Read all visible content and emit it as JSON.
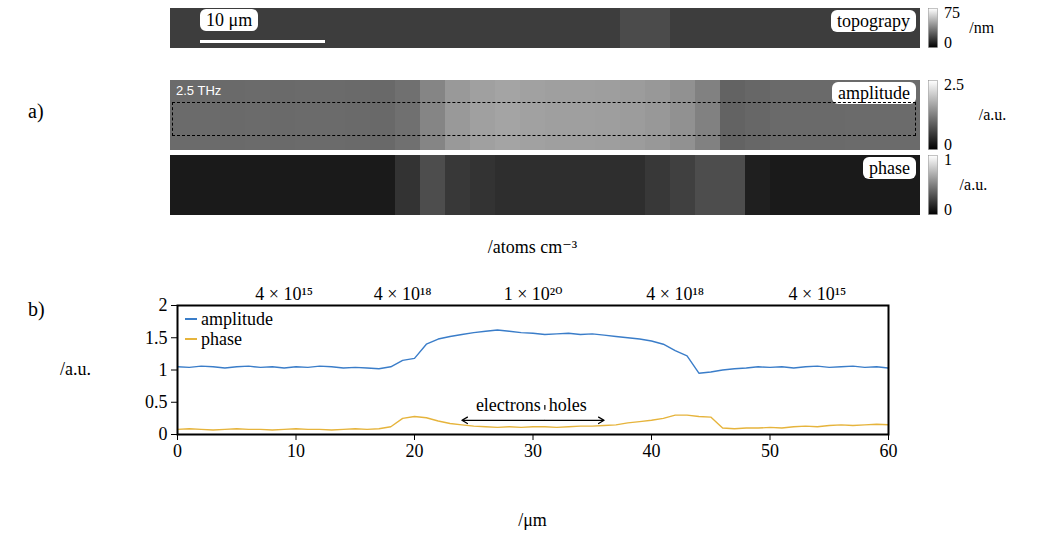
{
  "chart_data": [
    {
      "type": "heatmap",
      "panel_label": "a)",
      "title": "topograpy",
      "xlim": [
        0,
        60
      ],
      "bins": [
        0,
        2,
        4,
        6,
        8,
        10,
        12,
        14,
        16,
        18,
        20,
        22,
        24,
        26,
        28,
        30,
        32,
        34,
        36,
        38,
        40,
        42,
        44,
        46,
        48,
        50,
        52,
        54,
        56,
        58,
        60
      ],
      "values": [
        18,
        18,
        18,
        18,
        18,
        18,
        18,
        18,
        18,
        18,
        18,
        18,
        18,
        18,
        18,
        18,
        18,
        18,
        22,
        22,
        18,
        18,
        18,
        18,
        18,
        18,
        18,
        18,
        18,
        18
      ],
      "colorbar": {
        "range": [
          0,
          75
        ],
        "ticks": [
          0,
          75
        ],
        "label": "/nm"
      },
      "scale_bar": {
        "length": 10,
        "label": "10 μm"
      }
    },
    {
      "type": "heatmap",
      "title": "amplitude",
      "annotation": "2.5 THz",
      "xlim": [
        0,
        60
      ],
      "bins": [
        0,
        2,
        4,
        6,
        8,
        10,
        12,
        14,
        16,
        18,
        20,
        22,
        24,
        26,
        28,
        30,
        32,
        34,
        36,
        38,
        40,
        42,
        44,
        46,
        48,
        50,
        52,
        54,
        56,
        58,
        60
      ],
      "values": [
        1.05,
        1.05,
        1.04,
        1.05,
        1.04,
        1.05,
        1.05,
        1.04,
        1.03,
        1.1,
        1.3,
        1.5,
        1.57,
        1.61,
        1.58,
        1.56,
        1.56,
        1.55,
        1.53,
        1.49,
        1.42,
        1.26,
        0.97,
        1.01,
        1.04,
        1.04,
        1.04,
        1.05,
        1.05,
        1.05
      ],
      "colorbar": {
        "range": [
          0,
          2.5
        ],
        "ticks": [
          0,
          2.5
        ],
        "label": "/a.u."
      }
    },
    {
      "type": "heatmap",
      "title": "phase",
      "xlim": [
        0,
        60
      ],
      "bins": [
        0,
        2,
        4,
        6,
        8,
        10,
        12,
        14,
        16,
        18,
        20,
        22,
        24,
        26,
        28,
        30,
        32,
        34,
        36,
        38,
        40,
        42,
        44,
        46,
        48,
        50,
        52,
        54,
        56,
        58,
        60
      ],
      "values": [
        0.1,
        0.1,
        0.1,
        0.1,
        0.1,
        0.1,
        0.1,
        0.1,
        0.1,
        0.2,
        0.3,
        0.22,
        0.2,
        0.18,
        0.18,
        0.18,
        0.18,
        0.18,
        0.18,
        0.22,
        0.25,
        0.3,
        0.3,
        0.12,
        0.1,
        0.1,
        0.1,
        0.1,
        0.1,
        0.1
      ],
      "colorbar": {
        "range": [
          0,
          1
        ],
        "ticks": [
          0,
          1
        ],
        "label": "/a.u."
      }
    },
    {
      "type": "line",
      "panel_label": "b)",
      "x": [
        0,
        1,
        2,
        3,
        4,
        5,
        6,
        7,
        8,
        9,
        10,
        11,
        12,
        13,
        14,
        15,
        16,
        17,
        18,
        19,
        20,
        21,
        22,
        23,
        24,
        25,
        26,
        27,
        28,
        29,
        30,
        31,
        32,
        33,
        34,
        35,
        36,
        37,
        38,
        39,
        40,
        41,
        42,
        43,
        44,
        45,
        46,
        47,
        48,
        49,
        50,
        51,
        52,
        53,
        54,
        55,
        56,
        57,
        58,
        59,
        60
      ],
      "series": [
        {
          "name": "amplitude",
          "color": "#3a7dc9",
          "values": [
            1.05,
            1.04,
            1.06,
            1.05,
            1.03,
            1.05,
            1.06,
            1.04,
            1.05,
            1.03,
            1.05,
            1.04,
            1.06,
            1.05,
            1.03,
            1.04,
            1.03,
            1.02,
            1.05,
            1.15,
            1.18,
            1.4,
            1.48,
            1.52,
            1.55,
            1.58,
            1.6,
            1.62,
            1.6,
            1.58,
            1.57,
            1.55,
            1.56,
            1.57,
            1.55,
            1.56,
            1.54,
            1.52,
            1.5,
            1.48,
            1.45,
            1.4,
            1.3,
            1.22,
            0.95,
            0.97,
            1.0,
            1.02,
            1.03,
            1.05,
            1.04,
            1.05,
            1.03,
            1.05,
            1.06,
            1.04,
            1.05,
            1.06,
            1.04,
            1.05,
            1.03
          ]
        },
        {
          "name": "phase",
          "color": "#e6b43c",
          "values": [
            0.08,
            0.09,
            0.08,
            0.07,
            0.08,
            0.09,
            0.08,
            0.08,
            0.07,
            0.08,
            0.09,
            0.08,
            0.08,
            0.07,
            0.08,
            0.09,
            0.08,
            0.09,
            0.12,
            0.25,
            0.28,
            0.26,
            0.21,
            0.17,
            0.15,
            0.13,
            0.12,
            0.11,
            0.12,
            0.11,
            0.12,
            0.12,
            0.11,
            0.12,
            0.13,
            0.13,
            0.14,
            0.15,
            0.18,
            0.2,
            0.22,
            0.25,
            0.3,
            0.3,
            0.28,
            0.27,
            0.1,
            0.09,
            0.1,
            0.1,
            0.11,
            0.1,
            0.12,
            0.13,
            0.12,
            0.14,
            0.15,
            0.14,
            0.15,
            0.16,
            0.15
          ]
        }
      ],
      "xlim": [
        0,
        60
      ],
      "xticks": [
        0,
        10,
        20,
        30,
        40,
        50,
        60
      ],
      "xlabel": "/μm",
      "ylim": [
        0,
        2
      ],
      "yticks": [
        0,
        0.5,
        1,
        1.5,
        2
      ],
      "ylabel": "/a.u.",
      "x2label": "/atoms cm⁻³",
      "x2ticks": [
        {
          "value": 9,
          "label": "4 × 10¹⁵"
        },
        {
          "value": 19,
          "label": "4 × 10¹⁸"
        },
        {
          "value": 30,
          "label": "1 × 10²⁰"
        },
        {
          "value": 42,
          "label": "4 × 10¹⁸"
        },
        {
          "value": 54,
          "label": "4 × 10¹⁵"
        }
      ],
      "legend": "upper left",
      "annotation": {
        "left": "electrons",
        "right": "holes",
        "x": 31,
        "arrow": [
          24,
          36
        ],
        "arrow_y": 0.22,
        "text_y": 0.45
      }
    }
  ]
}
